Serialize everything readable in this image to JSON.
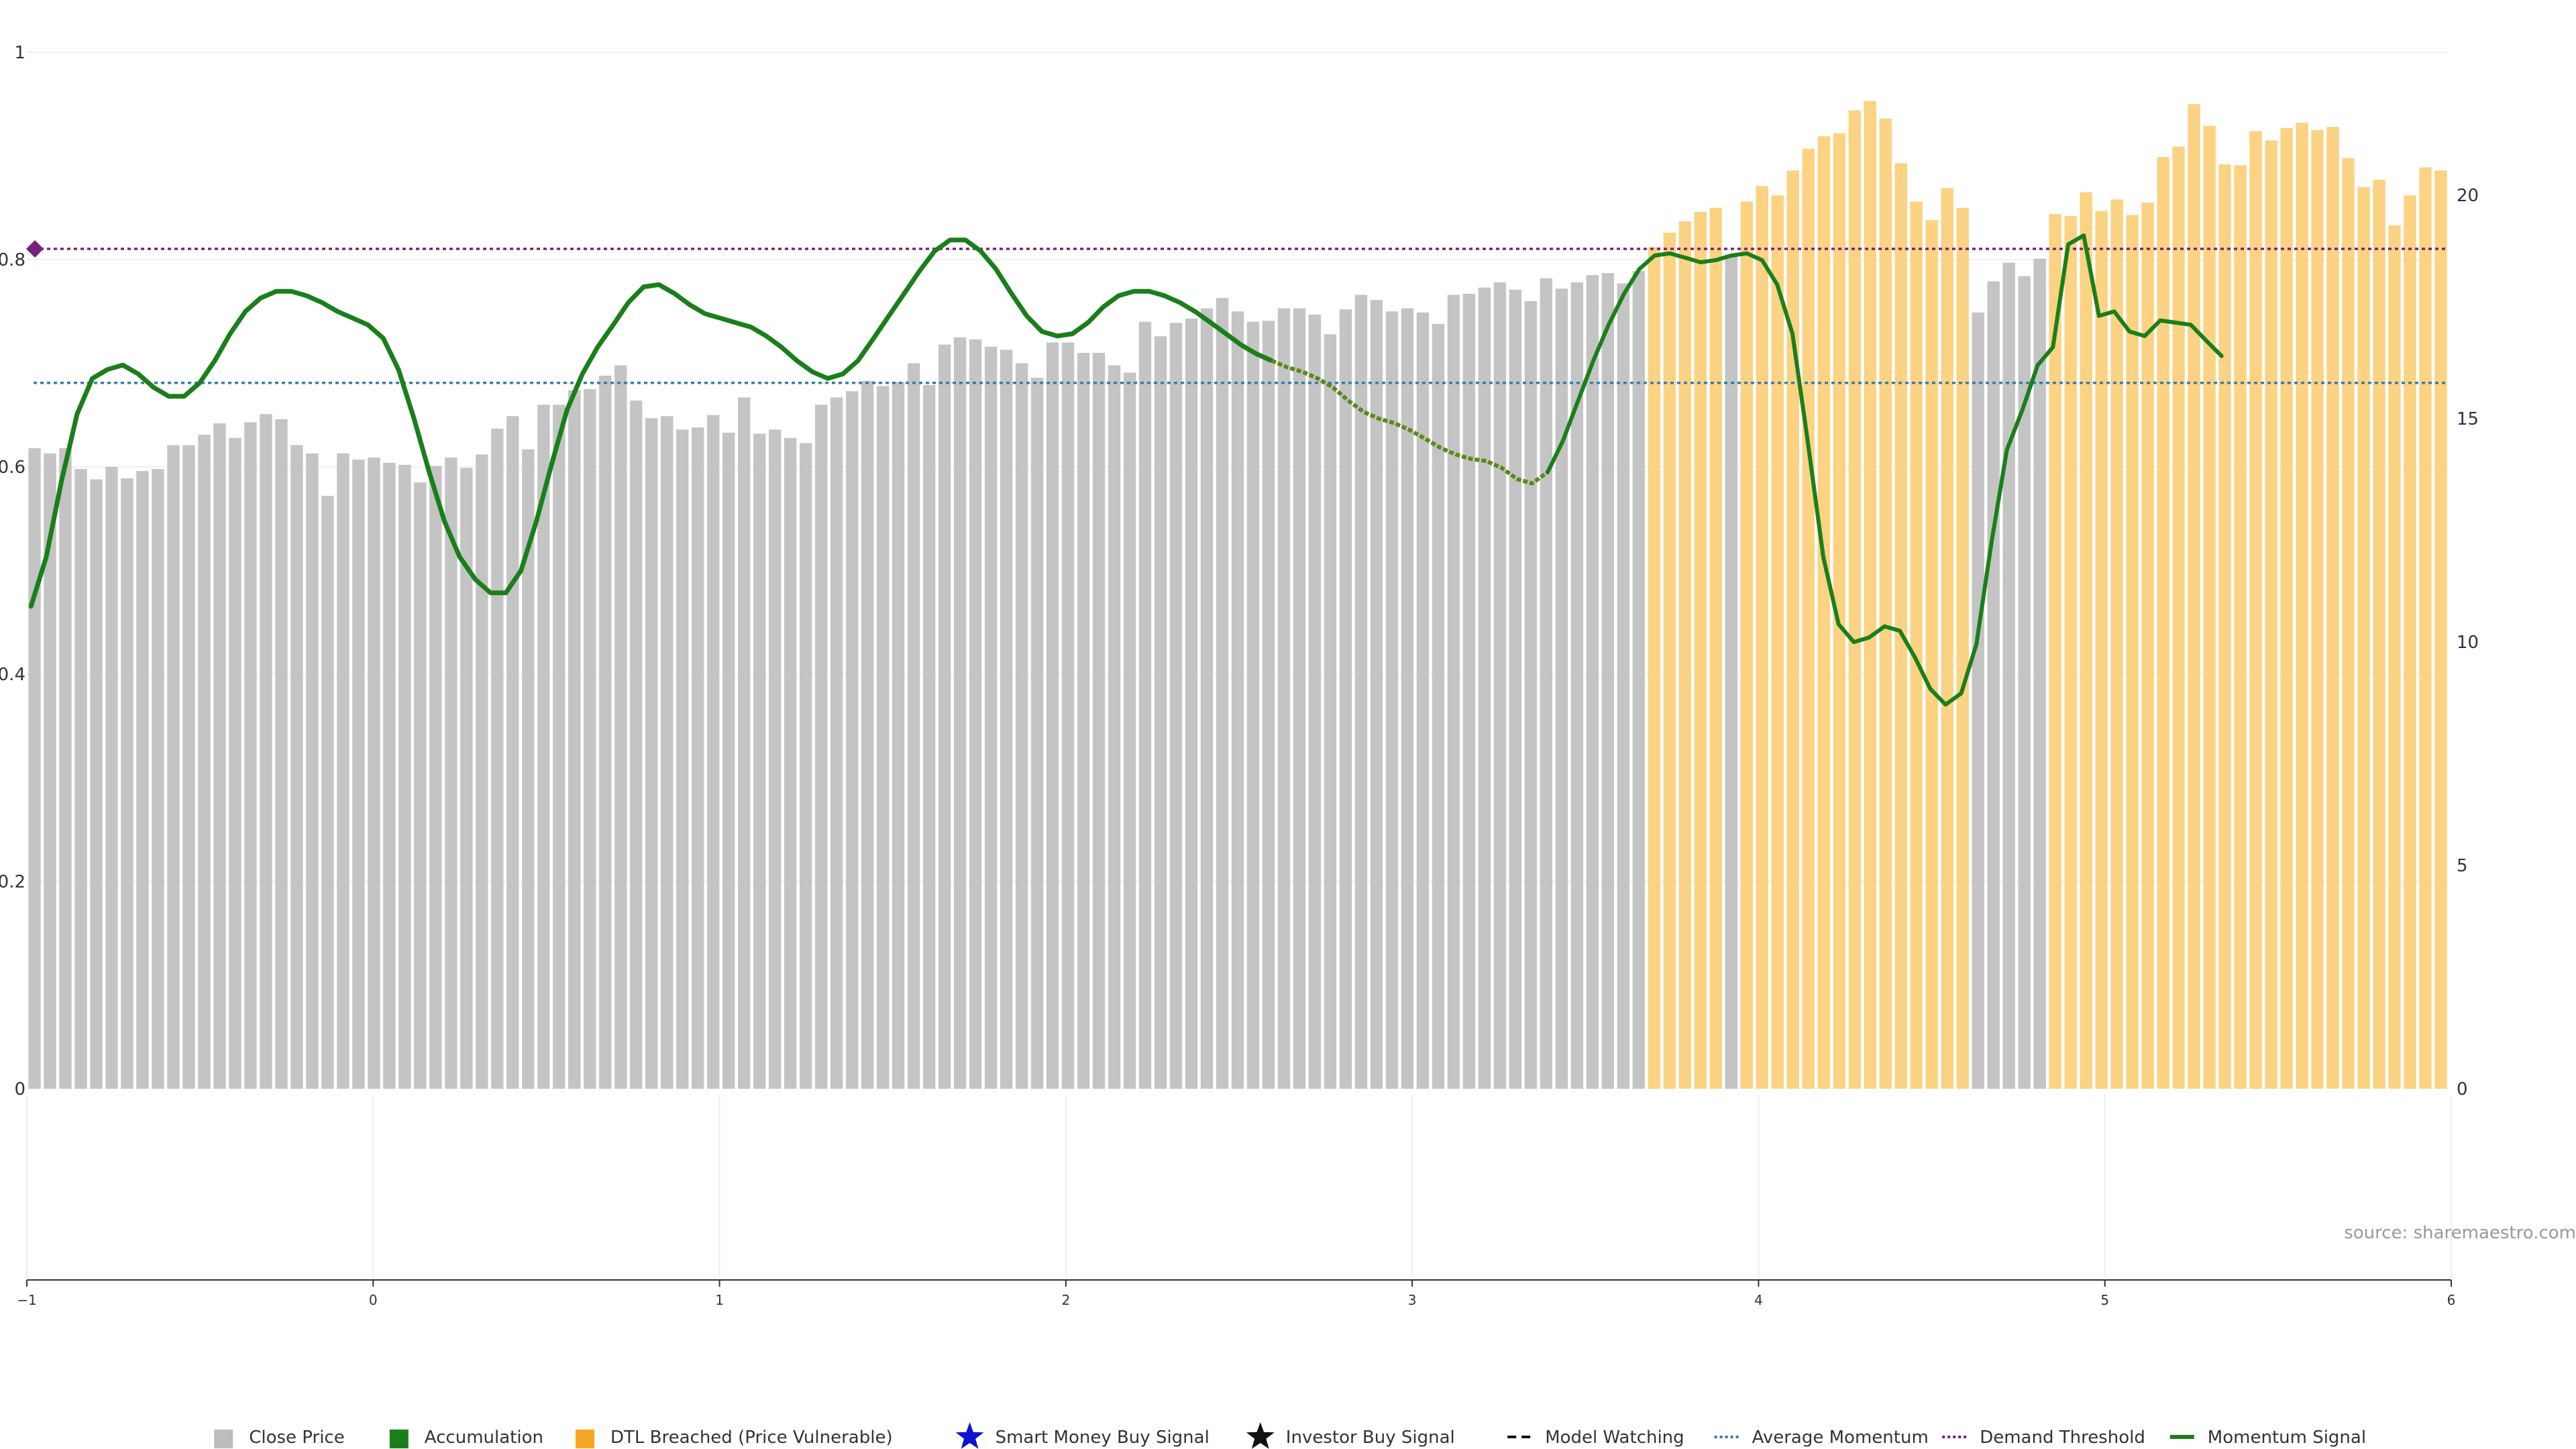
{
  "chart_data": {
    "type": "bar",
    "source_text": "source: sharemaestro.com",
    "colors": {
      "close_price": "#c4c4c4",
      "dtl_breached": "#fcd283",
      "momentum": "#1a7f1a",
      "momentum_alt": "#5a8a1a",
      "average_momentum": "#2e7fa8",
      "demand_threshold": "#7a1f7a",
      "legend_dtl": "#f5a623",
      "legend_accumulation": "#1a7f1a",
      "legend_smart_money": "#1010d0"
    },
    "left_axis": {
      "ticks": [
        0,
        0.2,
        0.4,
        0.6,
        0.8,
        1
      ],
      "tick_labels": [
        "0",
        "0.2",
        "0.4",
        "0.6",
        "0.8",
        "1"
      ],
      "range": [
        0,
        1
      ]
    },
    "right_axis": {
      "ticks": [
        0,
        5,
        10,
        15,
        20
      ],
      "tick_labels": [
        "0",
        "5",
        "10",
        "15",
        "20"
      ],
      "range": [
        0,
        23.2
      ]
    },
    "bottom_axis": {
      "ticks": [
        -1,
        0,
        1,
        2,
        3,
        4,
        5,
        6
      ],
      "tick_labels": [
        "−1",
        "0",
        "1",
        "2",
        "3",
        "4",
        "5",
        "6"
      ],
      "range": [
        -1,
        6
      ]
    },
    "average_momentum": 15.8,
    "demand_threshold": 18.8,
    "bars": [
      {
        "v": 0.618,
        "c": "g"
      },
      {
        "v": 0.613,
        "c": "g"
      },
      {
        "v": 0.618,
        "c": "g"
      },
      {
        "v": 0.598,
        "c": "g"
      },
      {
        "v": 0.588,
        "c": "g"
      },
      {
        "v": 0.6,
        "c": "g"
      },
      {
        "v": 0.589,
        "c": "g"
      },
      {
        "v": 0.596,
        "c": "g"
      },
      {
        "v": 0.598,
        "c": "g"
      },
      {
        "v": 0.621,
        "c": "g"
      },
      {
        "v": 0.621,
        "c": "g"
      },
      {
        "v": 0.631,
        "c": "g"
      },
      {
        "v": 0.642,
        "c": "g"
      },
      {
        "v": 0.628,
        "c": "g"
      },
      {
        "v": 0.643,
        "c": "g"
      },
      {
        "v": 0.651,
        "c": "g"
      },
      {
        "v": 0.646,
        "c": "g"
      },
      {
        "v": 0.621,
        "c": "g"
      },
      {
        "v": 0.613,
        "c": "g"
      },
      {
        "v": 0.572,
        "c": "g"
      },
      {
        "v": 0.613,
        "c": "g"
      },
      {
        "v": 0.607,
        "c": "g"
      },
      {
        "v": 0.609,
        "c": "g"
      },
      {
        "v": 0.604,
        "c": "g"
      },
      {
        "v": 0.602,
        "c": "g"
      },
      {
        "v": 0.585,
        "c": "g"
      },
      {
        "v": 0.601,
        "c": "g"
      },
      {
        "v": 0.609,
        "c": "g"
      },
      {
        "v": 0.599,
        "c": "g"
      },
      {
        "v": 0.612,
        "c": "g"
      },
      {
        "v": 0.637,
        "c": "g"
      },
      {
        "v": 0.649,
        "c": "g"
      },
      {
        "v": 0.617,
        "c": "g"
      },
      {
        "v": 0.66,
        "c": "g"
      },
      {
        "v": 0.66,
        "c": "g"
      },
      {
        "v": 0.674,
        "c": "g"
      },
      {
        "v": 0.675,
        "c": "g"
      },
      {
        "v": 0.688,
        "c": "g"
      },
      {
        "v": 0.698,
        "c": "g"
      },
      {
        "v": 0.664,
        "c": "g"
      },
      {
        "v": 0.647,
        "c": "g"
      },
      {
        "v": 0.649,
        "c": "g"
      },
      {
        "v": 0.636,
        "c": "g"
      },
      {
        "v": 0.638,
        "c": "g"
      },
      {
        "v": 0.65,
        "c": "g"
      },
      {
        "v": 0.633,
        "c": "g"
      },
      {
        "v": 0.667,
        "c": "g"
      },
      {
        "v": 0.632,
        "c": "g"
      },
      {
        "v": 0.636,
        "c": "g"
      },
      {
        "v": 0.628,
        "c": "g"
      },
      {
        "v": 0.623,
        "c": "g"
      },
      {
        "v": 0.66,
        "c": "g"
      },
      {
        "v": 0.667,
        "c": "g"
      },
      {
        "v": 0.673,
        "c": "g"
      },
      {
        "v": 0.683,
        "c": "g"
      },
      {
        "v": 0.678,
        "c": "g"
      },
      {
        "v": 0.682,
        "c": "g"
      },
      {
        "v": 0.7,
        "c": "g"
      },
      {
        "v": 0.679,
        "c": "g"
      },
      {
        "v": 0.718,
        "c": "g"
      },
      {
        "v": 0.725,
        "c": "g"
      },
      {
        "v": 0.723,
        "c": "g"
      },
      {
        "v": 0.716,
        "c": "g"
      },
      {
        "v": 0.713,
        "c": "g"
      },
      {
        "v": 0.7,
        "c": "g"
      },
      {
        "v": 0.686,
        "c": "g"
      },
      {
        "v": 0.72,
        "c": "g"
      },
      {
        "v": 0.72,
        "c": "g"
      },
      {
        "v": 0.71,
        "c": "g"
      },
      {
        "v": 0.71,
        "c": "g"
      },
      {
        "v": 0.698,
        "c": "g"
      },
      {
        "v": 0.691,
        "c": "g"
      },
      {
        "v": 0.74,
        "c": "g"
      },
      {
        "v": 0.726,
        "c": "g"
      },
      {
        "v": 0.739,
        "c": "g"
      },
      {
        "v": 0.743,
        "c": "g"
      },
      {
        "v": 0.753,
        "c": "g"
      },
      {
        "v": 0.763,
        "c": "g"
      },
      {
        "v": 0.75,
        "c": "g"
      },
      {
        "v": 0.74,
        "c": "g"
      },
      {
        "v": 0.741,
        "c": "g"
      },
      {
        "v": 0.753,
        "c": "g"
      },
      {
        "v": 0.753,
        "c": "g"
      },
      {
        "v": 0.747,
        "c": "g"
      },
      {
        "v": 0.728,
        "c": "g"
      },
      {
        "v": 0.752,
        "c": "g"
      },
      {
        "v": 0.766,
        "c": "g"
      },
      {
        "v": 0.761,
        "c": "g"
      },
      {
        "v": 0.75,
        "c": "g"
      },
      {
        "v": 0.753,
        "c": "g"
      },
      {
        "v": 0.749,
        "c": "g"
      },
      {
        "v": 0.738,
        "c": "g"
      },
      {
        "v": 0.766,
        "c": "g"
      },
      {
        "v": 0.767,
        "c": "g"
      },
      {
        "v": 0.773,
        "c": "g"
      },
      {
        "v": 0.778,
        "c": "g"
      },
      {
        "v": 0.771,
        "c": "g"
      },
      {
        "v": 0.76,
        "c": "g"
      },
      {
        "v": 0.782,
        "c": "g"
      },
      {
        "v": 0.772,
        "c": "g"
      },
      {
        "v": 0.778,
        "c": "g"
      },
      {
        "v": 0.785,
        "c": "g"
      },
      {
        "v": 0.787,
        "c": "g"
      },
      {
        "v": 0.777,
        "c": "g"
      },
      {
        "v": 0.789,
        "c": "g"
      },
      {
        "v": 0.812,
        "c": "o"
      },
      {
        "v": 0.826,
        "c": "o"
      },
      {
        "v": 0.837,
        "c": "o"
      },
      {
        "v": 0.846,
        "c": "o"
      },
      {
        "v": 0.85,
        "c": "o"
      },
      {
        "v": 0.805,
        "c": "g"
      },
      {
        "v": 0.856,
        "c": "o"
      },
      {
        "v": 0.871,
        "c": "o"
      },
      {
        "v": 0.862,
        "c": "o"
      },
      {
        "v": 0.886,
        "c": "o"
      },
      {
        "v": 0.907,
        "c": "o"
      },
      {
        "v": 0.919,
        "c": "o"
      },
      {
        "v": 0.922,
        "c": "o"
      },
      {
        "v": 0.944,
        "c": "o"
      },
      {
        "v": 0.953,
        "c": "o"
      },
      {
        "v": 0.936,
        "c": "o"
      },
      {
        "v": 0.893,
        "c": "o"
      },
      {
        "v": 0.856,
        "c": "o"
      },
      {
        "v": 0.838,
        "c": "o"
      },
      {
        "v": 0.869,
        "c": "o"
      },
      {
        "v": 0.85,
        "c": "o"
      },
      {
        "v": 0.749,
        "c": "g"
      },
      {
        "v": 0.779,
        "c": "g"
      },
      {
        "v": 0.797,
        "c": "g"
      },
      {
        "v": 0.784,
        "c": "g"
      },
      {
        "v": 0.801,
        "c": "g"
      },
      {
        "v": 0.844,
        "c": "o"
      },
      {
        "v": 0.842,
        "c": "o"
      },
      {
        "v": 0.865,
        "c": "o"
      },
      {
        "v": 0.847,
        "c": "o"
      },
      {
        "v": 0.858,
        "c": "o"
      },
      {
        "v": 0.843,
        "c": "o"
      },
      {
        "v": 0.855,
        "c": "o"
      },
      {
        "v": 0.899,
        "c": "o"
      },
      {
        "v": 0.909,
        "c": "o"
      },
      {
        "v": 0.95,
        "c": "o"
      },
      {
        "v": 0.929,
        "c": "o"
      },
      {
        "v": 0.892,
        "c": "o"
      },
      {
        "v": 0.891,
        "c": "o"
      },
      {
        "v": 0.924,
        "c": "o"
      },
      {
        "v": 0.915,
        "c": "o"
      },
      {
        "v": 0.927,
        "c": "o"
      },
      {
        "v": 0.932,
        "c": "o"
      },
      {
        "v": 0.925,
        "c": "o"
      },
      {
        "v": 0.928,
        "c": "o"
      },
      {
        "v": 0.898,
        "c": "o"
      },
      {
        "v": 0.87,
        "c": "o"
      },
      {
        "v": 0.877,
        "c": "o"
      },
      {
        "v": 0.833,
        "c": "o"
      },
      {
        "v": 0.862,
        "c": "o"
      },
      {
        "v": 0.889,
        "c": "o"
      },
      {
        "v": 0.886,
        "c": "o"
      }
    ],
    "momentum": [
      {
        "x": -0.988,
        "y": 10.8
      },
      {
        "x": -0.944,
        "y": 11.9
      },
      {
        "x": -0.9,
        "y": 13.6
      },
      {
        "x": -0.855,
        "y": 15.1
      },
      {
        "x": -0.811,
        "y": 15.9
      },
      {
        "x": -0.767,
        "y": 16.1
      },
      {
        "x": -0.723,
        "y": 16.2
      },
      {
        "x": -0.678,
        "y": 16.0
      },
      {
        "x": -0.634,
        "y": 15.7
      },
      {
        "x": -0.59,
        "y": 15.5
      },
      {
        "x": -0.546,
        "y": 15.5
      },
      {
        "x": -0.501,
        "y": 15.8
      },
      {
        "x": -0.457,
        "y": 16.3
      },
      {
        "x": -0.413,
        "y": 16.9
      },
      {
        "x": -0.369,
        "y": 17.4
      },
      {
        "x": -0.325,
        "y": 17.7
      },
      {
        "x": -0.28,
        "y": 17.85
      },
      {
        "x": -0.236,
        "y": 17.85
      },
      {
        "x": -0.192,
        "y": 17.75
      },
      {
        "x": -0.148,
        "y": 17.6
      },
      {
        "x": -0.103,
        "y": 17.4
      },
      {
        "x": -0.059,
        "y": 17.25
      },
      {
        "x": -0.015,
        "y": 17.1
      },
      {
        "x": 0.029,
        "y": 16.8
      },
      {
        "x": 0.073,
        "y": 16.1
      },
      {
        "x": 0.118,
        "y": 15.0
      },
      {
        "x": 0.162,
        "y": 13.8
      },
      {
        "x": 0.206,
        "y": 12.7
      },
      {
        "x": 0.25,
        "y": 11.9
      },
      {
        "x": 0.295,
        "y": 11.4
      },
      {
        "x": 0.339,
        "y": 11.1
      },
      {
        "x": 0.383,
        "y": 11.1
      },
      {
        "x": 0.427,
        "y": 11.6
      },
      {
        "x": 0.471,
        "y": 12.7
      },
      {
        "x": 0.516,
        "y": 14.0
      },
      {
        "x": 0.56,
        "y": 15.2
      },
      {
        "x": 0.604,
        "y": 16.0
      },
      {
        "x": 0.648,
        "y": 16.6
      },
      {
        "x": 0.693,
        "y": 17.1
      },
      {
        "x": 0.737,
        "y": 17.6
      },
      {
        "x": 0.781,
        "y": 17.95
      },
      {
        "x": 0.825,
        "y": 18.0
      },
      {
        "x": 0.87,
        "y": 17.8
      },
      {
        "x": 0.914,
        "y": 17.55
      },
      {
        "x": 0.958,
        "y": 17.35
      },
      {
        "x": 1.002,
        "y": 17.25
      },
      {
        "x": 1.046,
        "y": 17.15
      },
      {
        "x": 1.091,
        "y": 17.05
      },
      {
        "x": 1.135,
        "y": 16.85
      },
      {
        "x": 1.179,
        "y": 16.6
      },
      {
        "x": 1.223,
        "y": 16.3
      },
      {
        "x": 1.268,
        "y": 16.05
      },
      {
        "x": 1.312,
        "y": 15.9
      },
      {
        "x": 1.356,
        "y": 16.0
      },
      {
        "x": 1.4,
        "y": 16.3
      },
      {
        "x": 1.445,
        "y": 16.8
      },
      {
        "x": 1.489,
        "y": 17.3
      },
      {
        "x": 1.533,
        "y": 17.8
      },
      {
        "x": 1.577,
        "y": 18.3
      },
      {
        "x": 1.621,
        "y": 18.75
      },
      {
        "x": 1.666,
        "y": 19.0
      },
      {
        "x": 1.71,
        "y": 19.0
      },
      {
        "x": 1.754,
        "y": 18.75
      },
      {
        "x": 1.798,
        "y": 18.35
      },
      {
        "x": 1.843,
        "y": 17.8
      },
      {
        "x": 1.887,
        "y": 17.3
      },
      {
        "x": 1.931,
        "y": 16.95
      },
      {
        "x": 1.975,
        "y": 16.85
      },
      {
        "x": 2.019,
        "y": 16.9
      },
      {
        "x": 2.064,
        "y": 17.15
      },
      {
        "x": 2.108,
        "y": 17.5
      },
      {
        "x": 2.152,
        "y": 17.75
      },
      {
        "x": 2.196,
        "y": 17.85
      },
      {
        "x": 2.241,
        "y": 17.85
      },
      {
        "x": 2.285,
        "y": 17.75
      },
      {
        "x": 2.329,
        "y": 17.6
      },
      {
        "x": 2.373,
        "y": 17.4
      },
      {
        "x": 2.418,
        "y": 17.15
      },
      {
        "x": 2.462,
        "y": 16.9
      },
      {
        "x": 2.506,
        "y": 16.65
      },
      {
        "x": 2.55,
        "y": 16.45
      },
      {
        "x": 2.594,
        "y": 16.3
      },
      {
        "x": 2.639,
        "y": 16.15
      },
      {
        "x": 2.683,
        "y": 16.05
      },
      {
        "x": 2.727,
        "y": 15.9
      },
      {
        "x": 2.771,
        "y": 15.7
      },
      {
        "x": 2.816,
        "y": 15.4
      },
      {
        "x": 2.86,
        "y": 15.15
      },
      {
        "x": 2.904,
        "y": 15.0
      },
      {
        "x": 2.948,
        "y": 14.9
      },
      {
        "x": 2.992,
        "y": 14.75
      },
      {
        "x": 3.037,
        "y": 14.55
      },
      {
        "x": 3.081,
        "y": 14.35
      },
      {
        "x": 3.125,
        "y": 14.2
      },
      {
        "x": 3.169,
        "y": 14.1
      },
      {
        "x": 3.214,
        "y": 14.05
      },
      {
        "x": 3.258,
        "y": 13.9
      },
      {
        "x": 3.302,
        "y": 13.65
      },
      {
        "x": 3.346,
        "y": 13.55
      },
      {
        "x": 3.391,
        "y": 13.8
      },
      {
        "x": 3.435,
        "y": 14.5
      },
      {
        "x": 3.479,
        "y": 15.4
      },
      {
        "x": 3.523,
        "y": 16.3
      },
      {
        "x": 3.567,
        "y": 17.1
      },
      {
        "x": 3.612,
        "y": 17.8
      },
      {
        "x": 3.656,
        "y": 18.35
      },
      {
        "x": 3.7,
        "y": 18.65
      },
      {
        "x": 3.744,
        "y": 18.7
      },
      {
        "x": 3.789,
        "y": 18.6
      },
      {
        "x": 3.833,
        "y": 18.5
      },
      {
        "x": 3.877,
        "y": 18.55
      },
      {
        "x": 3.921,
        "y": 18.65
      },
      {
        "x": 3.966,
        "y": 18.7
      },
      {
        "x": 4.01,
        "y": 18.55
      },
      {
        "x": 4.054,
        "y": 18.0
      },
      {
        "x": 4.098,
        "y": 16.9
      },
      {
        "x": 4.142,
        "y": 14.5
      },
      {
        "x": 4.187,
        "y": 11.9
      },
      {
        "x": 4.231,
        "y": 10.4
      },
      {
        "x": 4.275,
        "y": 10.0
      },
      {
        "x": 4.319,
        "y": 10.1
      },
      {
        "x": 4.364,
        "y": 10.35
      },
      {
        "x": 4.408,
        "y": 10.25
      },
      {
        "x": 4.452,
        "y": 9.65
      },
      {
        "x": 4.496,
        "y": 8.95
      },
      {
        "x": 4.54,
        "y": 8.6
      },
      {
        "x": 4.585,
        "y": 8.85
      },
      {
        "x": 4.629,
        "y": 9.95
      },
      {
        "x": 4.673,
        "y": 12.25
      },
      {
        "x": 4.717,
        "y": 14.3
      },
      {
        "x": 4.762,
        "y": 15.2
      },
      {
        "x": 4.806,
        "y": 16.2
      },
      {
        "x": 4.85,
        "y": 16.6
      },
      {
        "x": 4.894,
        "y": 18.9
      },
      {
        "x": 4.939,
        "y": 19.1
      },
      {
        "x": 4.983,
        "y": 17.3
      },
      {
        "x": 5.027,
        "y": 17.4
      },
      {
        "x": 5.071,
        "y": 16.95
      },
      {
        "x": 5.115,
        "y": 16.85
      },
      {
        "x": 5.16,
        "y": 17.2
      },
      {
        "x": 5.204,
        "y": 17.15
      },
      {
        "x": 5.248,
        "y": 17.1
      },
      {
        "x": 5.292,
        "y": 16.75
      },
      {
        "x": 5.337,
        "y": 16.4
      }
    ],
    "legend": [
      {
        "label": "Close Price",
        "marker": "square",
        "color": "#bdbdbd"
      },
      {
        "label": "Accumulation",
        "marker": "square",
        "color": "#1a7f1a"
      },
      {
        "label": "DTL Breached (Price Vulnerable)",
        "marker": "square",
        "color": "#f5a623"
      },
      {
        "label": "Smart Money Buy Signal",
        "marker": "star",
        "color": "#1010d0"
      },
      {
        "label": "Investor Buy Signal",
        "marker": "star",
        "color": "#111111"
      },
      {
        "label": "Model Watching",
        "marker": "dash",
        "color": "#111111"
      },
      {
        "label": "Average Momentum",
        "marker": "dotted",
        "color": "#2e7fa8"
      },
      {
        "label": "Demand Threshold",
        "marker": "dotted",
        "color": "#7a1f7a"
      },
      {
        "label": "Momentum Signal",
        "marker": "line",
        "color": "#1a7f1a"
      }
    ]
  }
}
